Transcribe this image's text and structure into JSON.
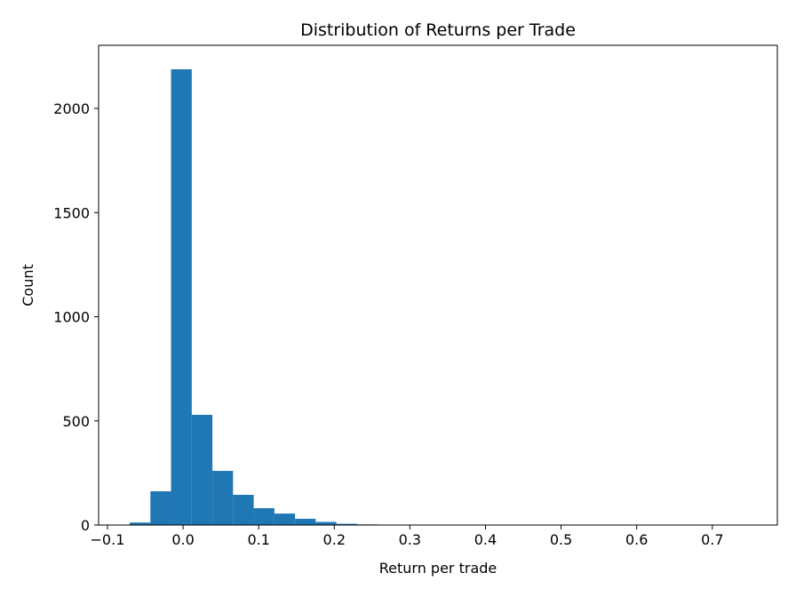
{
  "chart_data": {
    "type": "histogram",
    "title": "Distribution of Returns per Trade",
    "x_label": "Return per trade",
    "y_label": "Count",
    "color": "#1f77b4",
    "bins": [
      -0.0705,
      -0.0432,
      -0.0159,
      0.0115,
      0.0388,
      0.0661,
      0.0934,
      0.1208,
      0.1481,
      0.1754,
      0.2027,
      0.2301,
      0.2574,
      0.2847,
      0.312,
      0.3394,
      0.3667,
      0.394,
      0.4213,
      0.4487,
      0.476,
      0.5033,
      0.5306,
      0.558,
      0.5853,
      0.6126,
      0.6399,
      0.6673,
      0.6946,
      0.7219,
      0.7492
    ],
    "values": [
      12,
      162,
      2188,
      529,
      260,
      145,
      81,
      55,
      30,
      15,
      6,
      3,
      2,
      1,
      1,
      1,
      0,
      1,
      0,
      1,
      0,
      1,
      0,
      0,
      1,
      0,
      0,
      0,
      0,
      1
    ],
    "xlim": [
      -0.1117,
      0.786
    ],
    "xticks": [
      {
        "value": -0.1,
        "label": "−0.1"
      },
      {
        "value": 0,
        "label": "0.0"
      },
      0.1,
      0.2,
      0.3,
      0.4,
      0.5,
      0.6,
      0.7
    ],
    "ylim": [
      0,
      2303
    ],
    "yticks": [
      0,
      500,
      1000,
      1500,
      2000
    ]
  }
}
